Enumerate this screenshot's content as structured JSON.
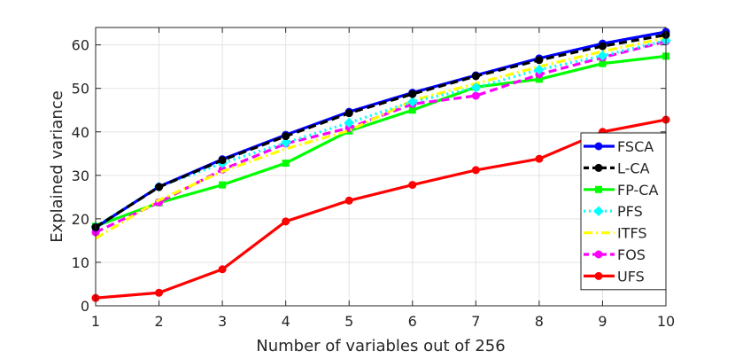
{
  "chart_data": {
    "type": "line",
    "xlabel": "Number of variables out of 256",
    "ylabel": "Explained variance",
    "x": [
      1,
      2,
      3,
      4,
      5,
      6,
      7,
      8,
      9,
      10
    ],
    "xlim": [
      1,
      10
    ],
    "ylim": [
      0,
      64
    ],
    "xticks": [
      1,
      2,
      3,
      4,
      5,
      6,
      7,
      8,
      9,
      10
    ],
    "yticks": [
      0,
      10,
      20,
      30,
      40,
      50,
      60
    ],
    "grid": true,
    "legend_position": "bottom-right",
    "series": [
      {
        "name": "FSCA",
        "color": "#0000ff",
        "dash": "solid",
        "marker": "circle",
        "values": [
          18.0,
          27.4,
          33.7,
          39.3,
          44.6,
          49.0,
          53.0,
          56.9,
          60.3,
          63.0
        ]
      },
      {
        "name": "L-CA",
        "color": "#000000",
        "dash": "dashed",
        "marker": "circle",
        "values": [
          18.1,
          27.3,
          33.5,
          39.0,
          44.3,
          48.7,
          52.8,
          56.5,
          59.7,
          62.3
        ]
      },
      {
        "name": "FP-CA",
        "color": "#00ff00",
        "dash": "solid",
        "marker": "square",
        "values": [
          18.3,
          23.7,
          27.8,
          32.8,
          40.2,
          45.0,
          50.3,
          52.1,
          55.7,
          57.4
        ]
      },
      {
        "name": "PFS",
        "color": "#00ffff",
        "dash": "dotted",
        "marker": "diamond",
        "values": [
          18.2,
          27.4,
          32.8,
          37.5,
          42.1,
          46.9,
          50.2,
          54.3,
          57.5,
          61.0
        ]
      },
      {
        "name": "ITFS",
        "color": "#ffff00",
        "dash": "dashdot",
        "marker": "none",
        "values": [
          15.5,
          24.3,
          30.9,
          36.1,
          40.3,
          47.2,
          51.1,
          55.0,
          58.5,
          61.6
        ]
      },
      {
        "name": "FOS",
        "color": "#ff00ff",
        "dash": "dashed",
        "marker": "circle",
        "values": [
          16.9,
          23.8,
          31.3,
          37.3,
          40.9,
          46.4,
          48.3,
          53.2,
          57.1,
          60.8
        ]
      },
      {
        "name": "UFS",
        "color": "#ff0000",
        "dash": "solid",
        "marker": "circle",
        "values": [
          1.8,
          3.0,
          8.4,
          19.4,
          24.2,
          27.8,
          31.2,
          33.8,
          40.0,
          42.8
        ]
      }
    ]
  }
}
